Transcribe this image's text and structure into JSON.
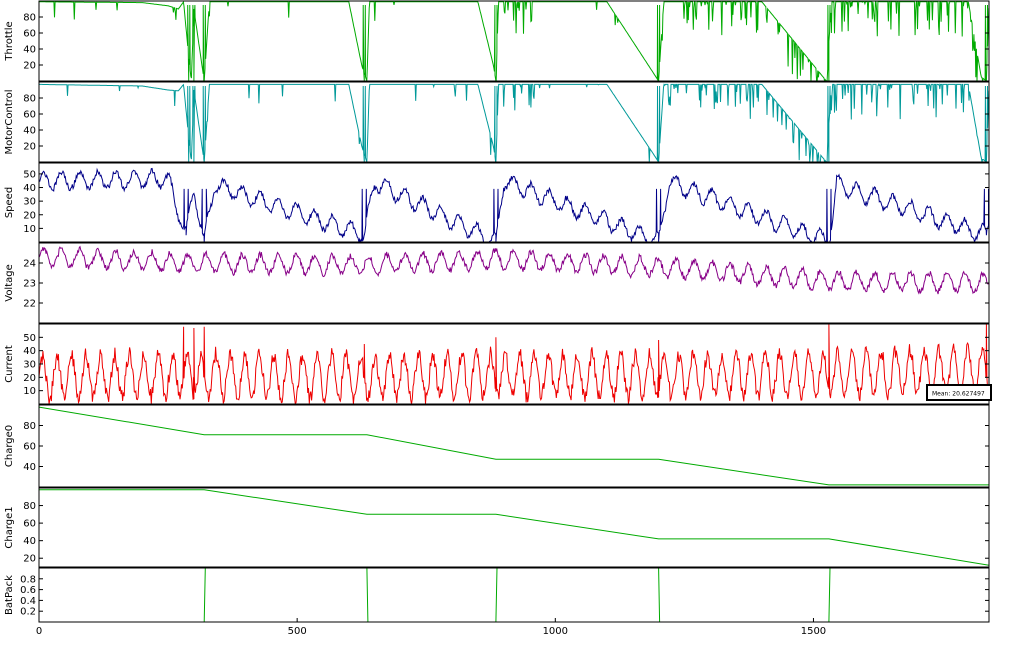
{
  "chart_data": {
    "type": "line",
    "layout": "stacked-subplots",
    "shared_x": true,
    "xlim": [
      0,
      1840
    ],
    "xticks": [
      0,
      500,
      1000,
      1500
    ],
    "xtick_labels": [
      "0",
      "500",
      "1000",
      "1500"
    ],
    "annotation": {
      "panel": "Current",
      "text": "Mean: 20.627497",
      "placement": "bottom-right"
    },
    "subplots": [
      {
        "ylabel": "Throttle",
        "color": "#00aa00",
        "ylim": [
          0,
          100
        ],
        "yticks": [
          20,
          40,
          60,
          80
        ],
        "ytick_labels": [
          "20",
          "40",
          "60",
          "80"
        ],
        "series_pattern": "mostly_full_with_dropouts",
        "series": [
          [
            0,
            99
          ],
          [
            200,
            98
          ],
          [
            250,
            94
          ],
          [
            270,
            90
          ],
          [
            280,
            99
          ],
          [
            290,
            30
          ],
          [
            295,
            0
          ],
          [
            300,
            90
          ],
          [
            320,
            0
          ],
          [
            330,
            99
          ],
          [
            380,
            99
          ],
          [
            600,
            99
          ],
          [
            625,
            20
          ],
          [
            635,
            0
          ],
          [
            640,
            99
          ],
          [
            850,
            99
          ],
          [
            880,
            20
          ],
          [
            885,
            0
          ],
          [
            890,
            99
          ],
          [
            1100,
            99
          ],
          [
            1190,
            10
          ],
          [
            1200,
            0
          ],
          [
            1210,
            99
          ],
          [
            1400,
            99
          ],
          [
            1525,
            0
          ],
          [
            1535,
            99
          ],
          [
            1600,
            99
          ],
          [
            1800,
            99
          ],
          [
            1825,
            5
          ],
          [
            1835,
            0
          ],
          [
            1840,
            99
          ]
        ]
      },
      {
        "ylabel": "MotorControl",
        "color": "#009999",
        "ylim": [
          0,
          100
        ],
        "yticks": [
          20,
          40,
          60,
          80
        ],
        "ytick_labels": [
          "20",
          "40",
          "60",
          "80"
        ],
        "series_pattern": "mostly_full_with_dropouts",
        "series": [
          [
            0,
            97
          ],
          [
            200,
            95
          ],
          [
            250,
            90
          ],
          [
            270,
            89
          ],
          [
            280,
            97
          ],
          [
            290,
            30
          ],
          [
            295,
            0
          ],
          [
            300,
            90
          ],
          [
            320,
            0
          ],
          [
            330,
            97
          ],
          [
            600,
            97
          ],
          [
            625,
            20
          ],
          [
            635,
            0
          ],
          [
            640,
            97
          ],
          [
            850,
            97
          ],
          [
            880,
            20
          ],
          [
            885,
            0
          ],
          [
            890,
            97
          ],
          [
            1100,
            97
          ],
          [
            1190,
            10
          ],
          [
            1200,
            0
          ],
          [
            1210,
            97
          ],
          [
            1400,
            97
          ],
          [
            1525,
            0
          ],
          [
            1535,
            97
          ],
          [
            1800,
            97
          ],
          [
            1825,
            5
          ],
          [
            1835,
            0
          ],
          [
            1840,
            97
          ]
        ]
      },
      {
        "ylabel": "Speed",
        "color": "#000088",
        "ylim": [
          0,
          58
        ],
        "yticks": [
          10,
          20,
          30,
          40,
          50
        ],
        "ytick_labels": [
          "10",
          "20",
          "30",
          "40",
          "50"
        ],
        "series_pattern": "oscillating",
        "oscillation": {
          "center": 45,
          "amplitude": 6,
          "period": 35
        },
        "dips": [
          [
            285,
            5
          ],
          [
            320,
            0
          ],
          [
            630,
            5
          ],
          [
            885,
            0
          ],
          [
            1200,
            0
          ],
          [
            1530,
            0
          ],
          [
            1835,
            5
          ]
        ],
        "series": [
          [
            0,
            45
          ],
          [
            250,
            46
          ],
          [
            285,
            5
          ],
          [
            300,
            40
          ],
          [
            320,
            0
          ],
          [
            340,
            42
          ],
          [
            630,
            5
          ],
          [
            650,
            44
          ],
          [
            885,
            0
          ],
          [
            900,
            45
          ],
          [
            1200,
            0
          ],
          [
            1220,
            44
          ],
          [
            1530,
            0
          ],
          [
            1545,
            42
          ],
          [
            1835,
            5
          ],
          [
            1840,
            15
          ]
        ]
      },
      {
        "ylabel": "Voltage",
        "color": "#880088",
        "ylim": [
          21,
          25
        ],
        "yticks": [
          22,
          23,
          24
        ],
        "ytick_labels": [
          "22",
          "23",
          "24"
        ],
        "series_pattern": "oscillating",
        "oscillation": {
          "center": 24,
          "amplitude": 0.45,
          "period": 35
        },
        "series": [
          [
            0,
            24.3
          ],
          [
            300,
            24.0
          ],
          [
            630,
            23.9
          ],
          [
            885,
            24.2
          ],
          [
            1200,
            23.8
          ],
          [
            1530,
            23.1
          ],
          [
            1840,
            23.0
          ]
        ]
      },
      {
        "ylabel": "Current",
        "color": "#ee0000",
        "ylim": [
          0,
          60
        ],
        "yticks": [
          10,
          20,
          30,
          40,
          50
        ],
        "ytick_labels": [
          "10",
          "20",
          "30",
          "40",
          "50"
        ],
        "series_pattern": "oscillating",
        "oscillation": {
          "center": 20,
          "amplitude": 16,
          "period": 28
        },
        "spikes": [
          [
            280,
            58
          ],
          [
            300,
            57
          ],
          [
            320,
            58
          ],
          [
            630,
            45
          ],
          [
            885,
            50
          ],
          [
            1200,
            48
          ],
          [
            1530,
            60
          ],
          [
            1835,
            60
          ]
        ],
        "series": [
          [
            0,
            20
          ],
          [
            300,
            22
          ],
          [
            630,
            20
          ],
          [
            885,
            22
          ],
          [
            1200,
            21
          ],
          [
            1530,
            23
          ],
          [
            1840,
            25
          ]
        ]
      },
      {
        "ylabel": "Charge0",
        "color": "#00aa00",
        "ylim": [
          20,
          100
        ],
        "yticks": [
          40,
          60,
          80
        ],
        "ytick_labels": [
          "40",
          "60",
          "80"
        ],
        "series_pattern": "linear",
        "series": [
          [
            0,
            98
          ],
          [
            320,
            71
          ],
          [
            635,
            71
          ],
          [
            885,
            47
          ],
          [
            1200,
            47
          ],
          [
            1530,
            22
          ],
          [
            1840,
            22
          ]
        ]
      },
      {
        "ylabel": "Charge1",
        "color": "#00aa00",
        "ylim": [
          10,
          100
        ],
        "yticks": [
          20,
          40,
          60,
          80
        ],
        "ytick_labels": [
          "20",
          "40",
          "60",
          "80"
        ],
        "series_pattern": "linear",
        "series": [
          [
            0,
            98
          ],
          [
            320,
            98
          ],
          [
            635,
            70
          ],
          [
            885,
            70
          ],
          [
            1200,
            42
          ],
          [
            1530,
            42
          ],
          [
            1840,
            12
          ]
        ]
      },
      {
        "ylabel": "BatPack",
        "color": "#00aa00",
        "ylim": [
          0,
          1
        ],
        "yticks": [
          0.2,
          0.4,
          0.6,
          0.8
        ],
        "ytick_labels": [
          "0.2",
          "0.4",
          "0.6",
          "0.8"
        ],
        "series_pattern": "linear",
        "series": [
          [
            0,
            0
          ],
          [
            320,
            0
          ],
          [
            322,
            1
          ],
          [
            635,
            1
          ],
          [
            637,
            0
          ],
          [
            885,
            0
          ],
          [
            887,
            1
          ],
          [
            1200,
            1
          ],
          [
            1202,
            0
          ],
          [
            1530,
            0
          ],
          [
            1532,
            1
          ],
          [
            1840,
            1
          ]
        ]
      }
    ]
  }
}
